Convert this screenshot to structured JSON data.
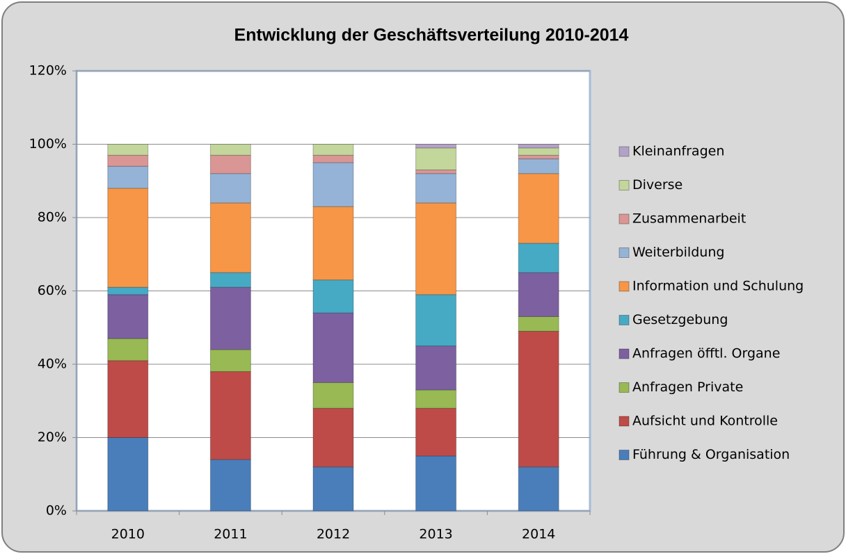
{
  "chart_data": {
    "type": "stacked_bar",
    "title": "Entwicklung der Geschäftsverteilung 2010-2014",
    "categories": [
      "2010",
      "2011",
      "2012",
      "2013",
      "2014"
    ],
    "series": [
      {
        "name": "Führung & Organisation",
        "color": "#4a7ebb",
        "values": [
          20,
          14,
          12,
          15,
          12
        ]
      },
      {
        "name": "Aufsicht und Kontrolle",
        "color": "#be4b48",
        "values": [
          21,
          24,
          16,
          13,
          37
        ]
      },
      {
        "name": "Anfragen Private",
        "color": "#98b954",
        "values": [
          6,
          6,
          7,
          5,
          4
        ]
      },
      {
        "name": "Anfragen öfftl. Organe",
        "color": "#7d60a0",
        "values": [
          12,
          17,
          19,
          12,
          12
        ]
      },
      {
        "name": "Gesetzgebung",
        "color": "#46aac5",
        "values": [
          2,
          4,
          9,
          14,
          8
        ]
      },
      {
        "name": "Information und Schulung",
        "color": "#f79646",
        "values": [
          27,
          19,
          20,
          25,
          19
        ]
      },
      {
        "name": "Weiterbildung",
        "color": "#95b3d7",
        "values": [
          6,
          8,
          12,
          8,
          4
        ]
      },
      {
        "name": "Zusammenarbeit",
        "color": "#d99694",
        "values": [
          3,
          5,
          2,
          1,
          1
        ]
      },
      {
        "name": "Diverse",
        "color": "#c3d69b",
        "values": [
          3,
          3,
          3,
          6,
          2
        ]
      },
      {
        "name": "Kleinanfragen",
        "color": "#b3a2c7",
        "values": [
          0,
          0,
          0,
          1,
          1
        ]
      }
    ],
    "ylim": [
      0,
      120
    ],
    "yticks": [
      {
        "value": 0,
        "label": "0%"
      },
      {
        "value": 20,
        "label": "20%"
      },
      {
        "value": 40,
        "label": "40%"
      },
      {
        "value": 60,
        "label": "60%"
      },
      {
        "value": 80,
        "label": "80%"
      },
      {
        "value": 100,
        "label": "100%"
      },
      {
        "value": 120,
        "label": "120%"
      }
    ],
    "grid": true,
    "legend": "right"
  }
}
